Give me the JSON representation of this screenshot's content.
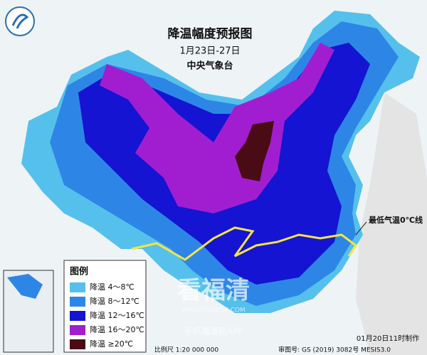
{
  "header": {
    "title": "降温幅度预报图",
    "date": "1月23日-27日",
    "issuer": "中央气象台"
  },
  "legend": {
    "title": "图例",
    "items": [
      {
        "label": "降温 4～8℃",
        "color": "#56c0ec"
      },
      {
        "label": "降温 8～12℃",
        "color": "#2d86e6"
      },
      {
        "label": "降温 12～16℃",
        "color": "#1414d2"
      },
      {
        "label": "降温 16～20℃",
        "color": "#a11ed0"
      },
      {
        "label": "降温 ≥20℃",
        "color": "#4a0c14"
      }
    ]
  },
  "annotation": "最低气温0℃线",
  "footer": {
    "made": "01月20日11时制作",
    "scale": "比例尺 1:20 000 000",
    "review": "审图号: GS (2019) 3082号 MESIS3.0"
  },
  "watermark": {
    "name": "看福清",
    "url": "WWW.FQLOOK.COM",
    "app": "手机福清网APP"
  }
}
